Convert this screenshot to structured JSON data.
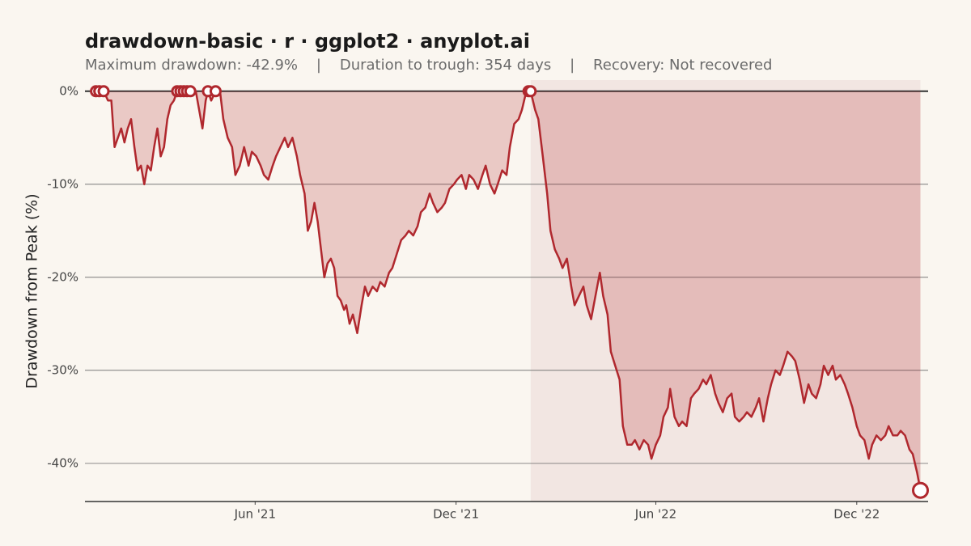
{
  "chart_data": {
    "type": "drawdown",
    "title": "drawdown-basic · r · ggplot2 · anyplot.ai",
    "subtitle": "Maximum drawdown: -42.9%    |    Duration to trough: 354 days    |    Recovery: Not recovered",
    "y_label": "Drawdown from Peak (%)",
    "xlim": [
      -4,
      764
    ],
    "xticks": [
      {
        "value": 151,
        "label": "Jun '21"
      },
      {
        "value": 334,
        "label": "Dec '21"
      },
      {
        "value": 516,
        "label": "Jun '22"
      },
      {
        "value": 699,
        "label": "Dec '22"
      }
    ],
    "ylim": [
      -44.1,
      1.2
    ],
    "yticks": [
      {
        "value": 0,
        "label": "0%"
      },
      {
        "value": -10,
        "label": "-10%"
      },
      {
        "value": -20,
        "label": "-20%"
      },
      {
        "value": -30,
        "label": "-30%"
      },
      {
        "value": -40,
        "label": "-40%"
      }
    ],
    "grid": true,
    "color": "#b0282e",
    "highlight_period": [
      402,
      757
    ],
    "x": [
      6,
      9,
      13,
      17,
      20,
      23,
      26,
      29,
      32,
      35,
      38,
      41,
      44,
      47,
      50,
      53,
      56,
      59,
      62,
      65,
      68,
      71,
      74,
      77,
      80,
      83,
      86,
      89,
      92,
      97,
      100,
      103,
      106,
      108,
      111,
      115,
      119,
      122,
      126,
      130,
      133,
      137,
      141,
      145,
      148,
      152,
      156,
      159,
      163,
      167,
      170,
      174,
      178,
      181,
      185,
      189,
      192,
      196,
      199,
      202,
      205,
      208,
      211,
      214,
      217,
      220,
      223,
      226,
      229,
      232,
      234,
      237,
      240,
      244,
      248,
      251,
      254,
      258,
      262,
      265,
      269,
      273,
      276,
      280,
      284,
      288,
      291,
      295,
      299,
      302,
      306,
      310,
      313,
      317,
      321,
      324,
      328,
      332,
      335,
      339,
      343,
      346,
      350,
      354,
      358,
      361,
      365,
      369,
      372,
      376,
      380,
      383,
      387,
      391,
      394,
      397,
      400,
      402,
      406,
      409,
      413,
      417,
      420,
      424,
      428,
      431,
      435,
      439,
      442,
      446,
      450,
      453,
      457,
      461,
      465,
      468,
      472,
      475,
      479,
      483,
      486,
      490,
      494,
      497,
      501,
      505,
      509,
      512,
      516,
      520,
      523,
      527,
      529,
      533,
      537,
      540,
      544,
      548,
      551,
      555,
      559,
      562,
      566,
      570,
      573,
      577,
      581,
      585,
      588,
      592,
      596,
      599,
      603,
      607,
      610,
      614,
      618,
      621,
      625,
      629,
      632,
      636,
      640,
      643,
      647,
      651,
      655,
      658,
      662,
      666,
      669,
      673,
      677,
      680,
      684,
      688,
      691,
      695,
      699,
      702,
      706,
      710,
      713,
      717,
      721,
      725,
      728,
      732,
      736,
      739,
      743,
      747,
      750,
      754,
      757
    ],
    "values": [
      0,
      0,
      0,
      -1,
      -1,
      -6,
      -5,
      -4,
      -5.5,
      -4,
      -3,
      -6,
      -8.5,
      -8,
      -10,
      -8,
      -8.5,
      -6,
      -4,
      -7,
      -6,
      -3,
      -1.5,
      -1,
      0,
      0,
      0,
      0,
      0,
      0,
      -2,
      -4,
      -1,
      0,
      -1,
      0,
      0,
      -3,
      -5,
      -6,
      -9,
      -8,
      -6,
      -8,
      -6.5,
      -7,
      -8,
      -9,
      -9.5,
      -8,
      -7,
      -6,
      -5,
      -6,
      -5,
      -7,
      -9,
      -11,
      -15,
      -14,
      -12,
      -14,
      -17,
      -20,
      -18.5,
      -18,
      -19,
      -22,
      -22.5,
      -23.5,
      -23,
      -25,
      -24,
      -26,
      -23,
      -21,
      -22,
      -21,
      -21.5,
      -20.5,
      -21,
      -19.5,
      -19,
      -17.5,
      -16,
      -15.5,
      -15,
      -15.5,
      -14.5,
      -13,
      -12.5,
      -11,
      -12,
      -13,
      -12.5,
      -12,
      -10.5,
      -10,
      -9.5,
      -9,
      -10.5,
      -9,
      -9.5,
      -10.5,
      -9,
      -8,
      -10,
      -11,
      -10,
      -8.5,
      -9,
      -6,
      -3.5,
      -3,
      -2,
      -0.5,
      0,
      0,
      -2,
      -3,
      -7,
      -11,
      -15,
      -17,
      -18,
      -19,
      -18,
      -21,
      -23,
      -22,
      -21,
      -23,
      -24.5,
      -22,
      -19.5,
      -22,
      -24,
      -28,
      -29.5,
      -31,
      -36,
      -38,
      -38,
      -37.5,
      -38.5,
      -37.5,
      -38,
      -39.5,
      -38,
      -37,
      -35,
      -34,
      -32,
      -35,
      -36,
      -35.5,
      -36,
      -33,
      -32.5,
      -32,
      -31,
      -31.5,
      -30.5,
      -32.5,
      -33.5,
      -34.5,
      -33,
      -32.5,
      -35,
      -35.5,
      -35,
      -34.5,
      -35,
      -34,
      -33,
      -35.5,
      -33,
      -31.5,
      -30,
      -30.5,
      -29.5,
      -28,
      -28.5,
      -29,
      -31,
      -33.5,
      -31.5,
      -32.5,
      -33,
      -31.5,
      -29.5,
      -30.5,
      -29.5,
      -31,
      -30.5,
      -31.5,
      -32.5,
      -34,
      -36,
      -37,
      -37.5,
      -39.5,
      -38,
      -37,
      -37.5,
      -37,
      -36,
      -37,
      -37,
      -36.5,
      -37,
      -38.5,
      -39,
      -41,
      -42.9
    ],
    "markers": {
      "x": [
        6,
        9,
        13,
        80,
        83,
        86,
        89,
        92,
        108,
        115,
        400,
        402,
        757
      ],
      "values": [
        0,
        0,
        0,
        0,
        0,
        0,
        0,
        0,
        0,
        0,
        0,
        0,
        -42.9
      ]
    }
  }
}
